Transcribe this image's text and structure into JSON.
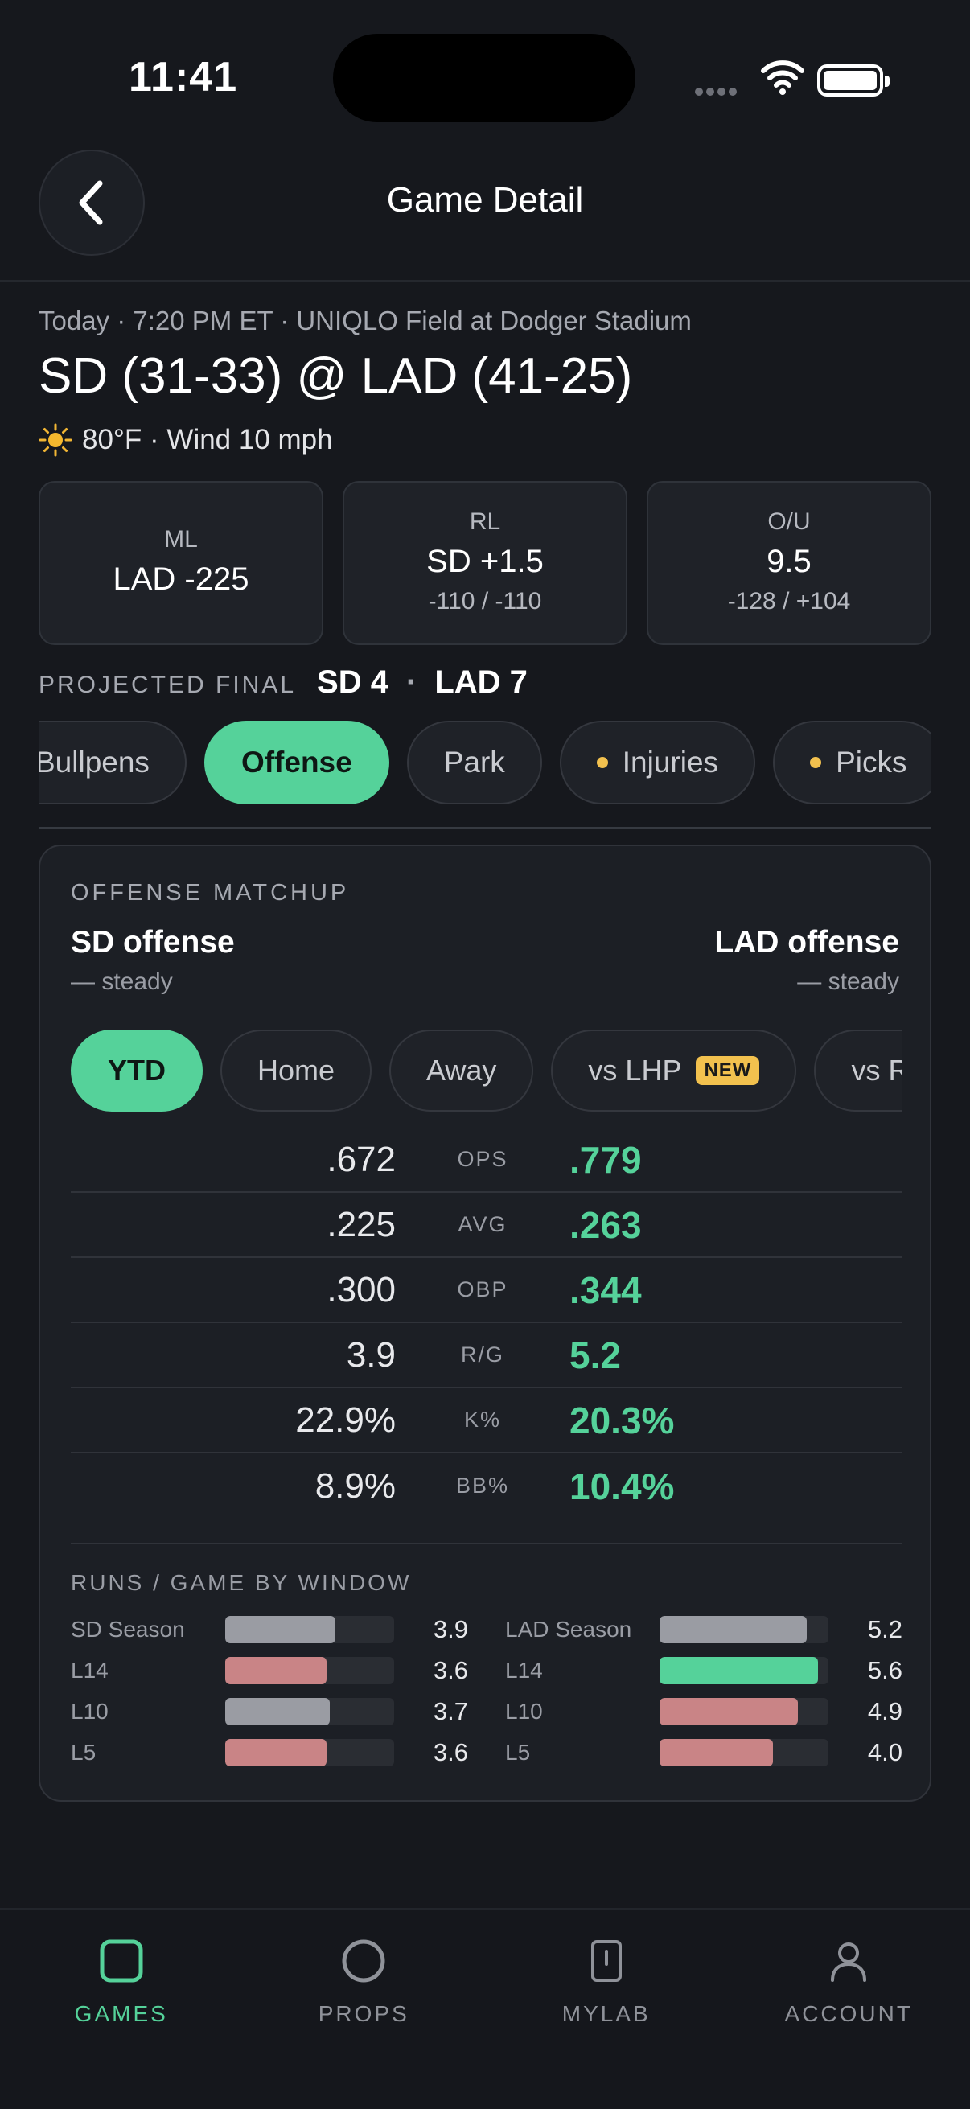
{
  "status": {
    "time": "11:41"
  },
  "header": {
    "title": "Game Detail"
  },
  "game": {
    "meta": "Today · 7:20 PM ET · UNIQLO Field at Dodger Stadium",
    "matchup": "SD (31-33) @ LAD (41-25)",
    "weather": "80°F  · Wind 10 mph"
  },
  "odds": [
    {
      "label": "ML",
      "value": "LAD -225",
      "sub": ""
    },
    {
      "label": "RL",
      "value": "SD +1.5",
      "sub": "-110 / -110"
    },
    {
      "label": "O/U",
      "value": "9.5",
      "sub": "-128 / +104"
    }
  ],
  "projected": {
    "label": "PROJECTED FINAL",
    "away": "SD 4",
    "sep": "·",
    "home": "LAD 7"
  },
  "tabs": [
    {
      "label": "Bullpens",
      "active": false,
      "dot": false
    },
    {
      "label": "Offense",
      "active": true,
      "dot": false
    },
    {
      "label": "Park",
      "active": false,
      "dot": false
    },
    {
      "label": "Injuries",
      "active": false,
      "dot": true
    },
    {
      "label": "Picks",
      "active": false,
      "dot": true
    }
  ],
  "offense": {
    "panel_label": "OFFENSE MATCHUP",
    "left_team": {
      "name": "SD offense",
      "trend": "— steady"
    },
    "right_team": {
      "name": "LAD offense",
      "trend": "— steady"
    },
    "splits": [
      {
        "label": "YTD",
        "active": true
      },
      {
        "label": "Home",
        "active": false
      },
      {
        "label": "Away",
        "active": false
      },
      {
        "label": "vs LHP",
        "active": false,
        "badge": "NEW"
      },
      {
        "label": "vs RHP",
        "active": false
      }
    ],
    "stats": [
      {
        "left": ".672",
        "name": "OPS",
        "right": ".779"
      },
      {
        "left": ".225",
        "name": "AVG",
        "right": ".263"
      },
      {
        "left": ".300",
        "name": "OBP",
        "right": ".344"
      },
      {
        "left": "3.9",
        "name": "R/G",
        "right": "5.2"
      },
      {
        "left": "22.9%",
        "name": "K%",
        "right": "20.3%"
      },
      {
        "left": "8.9%",
        "name": "BB%",
        "right": "10.4%"
      }
    ],
    "bars_label": "RUNS / GAME BY WINDOW",
    "bars_left": [
      {
        "name": "SD Season",
        "value": "3.9",
        "fill": 0.65,
        "color": "#9a9ca3"
      },
      {
        "name": "L14",
        "value": "3.6",
        "fill": 0.6,
        "color": "#c98486"
      },
      {
        "name": "L10",
        "value": "3.7",
        "fill": 0.62,
        "color": "#9a9ca3"
      },
      {
        "name": "L5",
        "value": "3.6",
        "fill": 0.6,
        "color": "#c98486"
      }
    ],
    "bars_right": [
      {
        "name": "LAD Season",
        "value": "5.2",
        "fill": 0.87,
        "color": "#9a9ca3"
      },
      {
        "name": "L14",
        "value": "5.6",
        "fill": 0.94,
        "color": "#55d29a"
      },
      {
        "name": "L10",
        "value": "4.9",
        "fill": 0.82,
        "color": "#c98486"
      },
      {
        "name": "L5",
        "value": "4.0",
        "fill": 0.67,
        "color": "#c98486"
      }
    ]
  },
  "nav": [
    {
      "label": "GAMES",
      "icon": "games-icon",
      "active": true
    },
    {
      "label": "PROPS",
      "icon": "props-icon",
      "active": false
    },
    {
      "label": "MYLAB",
      "icon": "mylab-icon",
      "active": false
    },
    {
      "label": "ACCOUNT",
      "icon": "account-icon",
      "active": false
    }
  ],
  "colors": {
    "accent": "#55d29a",
    "background": "#16181d",
    "warn": "#f2c14e",
    "negative": "#c98486"
  }
}
